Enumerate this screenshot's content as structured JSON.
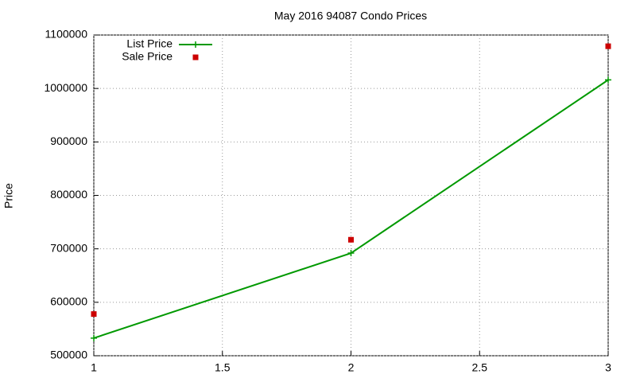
{
  "chart_data": {
    "type": "line",
    "title": "May 2016 94087 Condo Prices",
    "y_label": "Price",
    "x": [
      1,
      2,
      3
    ],
    "series": [
      {
        "name": "List Price",
        "color": "#009900",
        "marker": "plus",
        "line": true,
        "values": [
          533000,
          692000,
          1016000
        ]
      },
      {
        "name": "Sale Price",
        "color": "#cc0000",
        "marker": "square",
        "line": false,
        "values": [
          578000,
          717000,
          1079000
        ]
      }
    ],
    "xlim": [
      1,
      3
    ],
    "xticks": [
      1,
      1.5,
      2,
      2.5,
      3
    ],
    "ylim": [
      500000,
      1100000
    ],
    "yticks": [
      500000,
      600000,
      700000,
      800000,
      900000,
      1000000,
      1100000
    ],
    "grid": true,
    "legend": "top-left"
  }
}
